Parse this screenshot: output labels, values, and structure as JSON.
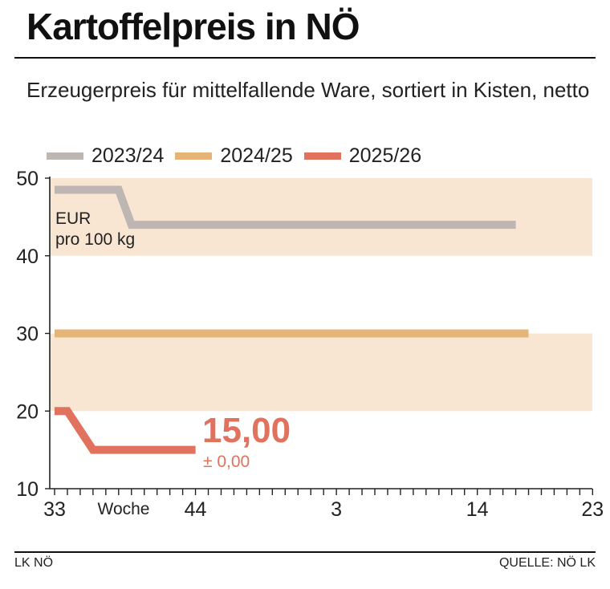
{
  "header": {
    "title": "Kartoffelpreis in NÖ",
    "subtitle": "Erzeugerpreis für mittelfallende Ware, sortiert in Kisten, netto"
  },
  "footer": {
    "left": "LK NÖ",
    "right": "QUELLE: NÖ LK"
  },
  "colors": {
    "series_2023": "#bdb6b2",
    "series_2024": "#e5b578",
    "series_2025": "#e0725e",
    "band": "#f8e6d3",
    "axis": "#222222"
  },
  "chart_data": {
    "type": "line",
    "title": "Kartoffelpreis in NÖ",
    "subtitle": "Erzeugerpreis für mittelfallende Ware, sortiert in Kisten, netto",
    "unit_label": [
      "EUR",
      "pro 100 kg"
    ],
    "xlabel": "Woche",
    "x_tick_labels": [
      {
        "label": "33",
        "week_index": 0
      },
      {
        "label": "44",
        "week_index": 11
      },
      {
        "label": "3",
        "week_index": 22
      },
      {
        "label": "14",
        "week_index": 33
      },
      {
        "label": "23",
        "week_index": 42
      }
    ],
    "x_range_weeks": [
      0,
      42
    ],
    "ylim": [
      10,
      50
    ],
    "yticks": [
      10,
      20,
      30,
      40,
      50
    ],
    "y_bands": [
      [
        40,
        50
      ],
      [
        20,
        30
      ]
    ],
    "legend_position": "top",
    "series": [
      {
        "name": "2023/24",
        "color": "#bdb6b2",
        "points": [
          {
            "week_index": 0,
            "value": 48.5
          },
          {
            "week_index": 5,
            "value": 48.5
          },
          {
            "week_index": 6,
            "value": 44
          },
          {
            "week_index": 36,
            "value": 44
          }
        ]
      },
      {
        "name": "2024/25",
        "color": "#e5b578",
        "points": [
          {
            "week_index": 0,
            "value": 30
          },
          {
            "week_index": 37,
            "value": 30
          }
        ]
      },
      {
        "name": "2025/26",
        "color": "#e0725e",
        "points": [
          {
            "week_index": 0,
            "value": 20
          },
          {
            "week_index": 1,
            "value": 20
          },
          {
            "week_index": 3,
            "value": 15
          },
          {
            "week_index": 11,
            "value": 15
          }
        ]
      }
    ],
    "annotation": {
      "value_text": "15,00",
      "change_text": "± 0,00",
      "color": "#e0725e"
    }
  }
}
